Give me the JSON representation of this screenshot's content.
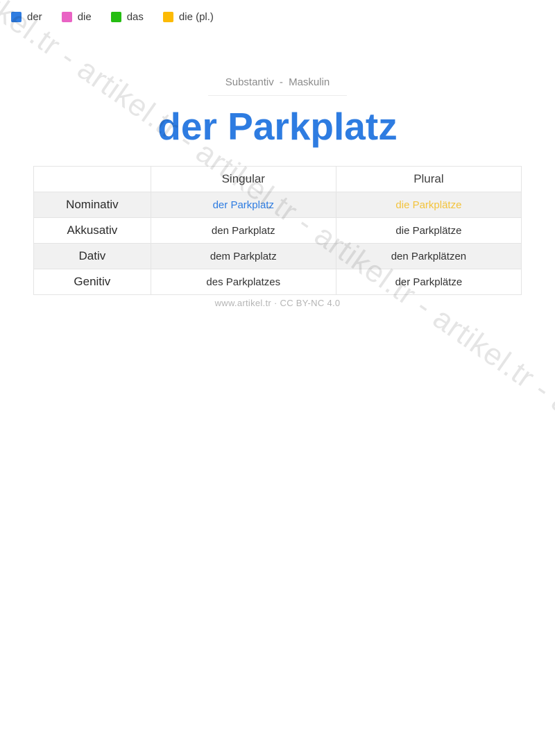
{
  "watermark": {
    "text": "artikel.tr - artikel.tr - artikel.tr - artikel.tr - artikel.tr - artikel.tr - artikel.tr - artikel.tr - artikel.tr - artikel.tr - artikel.tr - artikel.tr"
  },
  "legend": {
    "items": [
      {
        "label": "der",
        "color": "#2e7ce1"
      },
      {
        "label": "die",
        "color": "#e963c4"
      },
      {
        "label": "das",
        "color": "#25bd12"
      },
      {
        "label": "die (pl.)",
        "color": "#fcba04"
      }
    ]
  },
  "header": {
    "subtitle": "Substantiv - Maskulin",
    "title": "der Parkplatz",
    "title_color": "#2e7ce1"
  },
  "table": {
    "columns": [
      "",
      "Singular",
      "Plural"
    ],
    "rows": [
      {
        "case": "Nominativ",
        "singular": "der Parkplatz",
        "plural": "die Parkplätze",
        "singular_color": "#2e7ce1",
        "plural_color": "#f3c33c"
      },
      {
        "case": "Akkusativ",
        "singular": "den Parkplatz",
        "plural": "die Parkplätze"
      },
      {
        "case": "Dativ",
        "singular": "dem Parkplatz",
        "plural": "den Parkplätzen"
      },
      {
        "case": "Genitiv",
        "singular": "des Parkplatzes",
        "plural": "der Parkplätze"
      }
    ]
  },
  "footer": {
    "text": "www.artikel.tr · CC BY-NC 4.0"
  }
}
